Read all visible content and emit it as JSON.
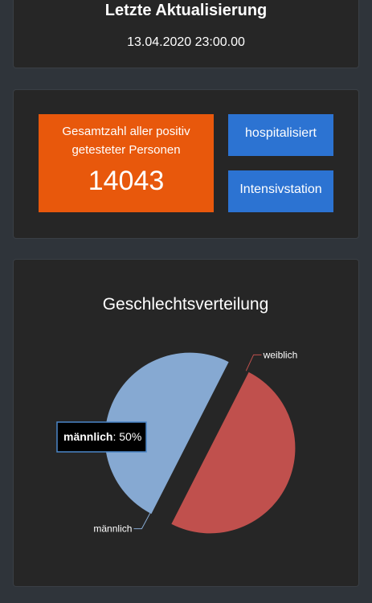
{
  "update": {
    "title": "Letzte Aktualisierung",
    "date": "13.04.2020 23:00.00"
  },
  "stats": {
    "total_label": "Gesamtzahl aller positiv getesteter Personen",
    "total_value": "14043",
    "hospitalized_label": "hospitalisiert",
    "icu_label": "Intensivstation"
  },
  "colors": {
    "accent_orange": "#e8580c",
    "button_blue": "#2c73d2",
    "female": "#c0504d",
    "male": "#86a9d2"
  },
  "chart_data": {
    "type": "pie",
    "title": "Geschlechtsverteilung",
    "categories": [
      "weiblich",
      "männlich"
    ],
    "values": [
      50,
      50
    ],
    "tooltip": {
      "label": "männlich",
      "value": ": 50%"
    }
  }
}
